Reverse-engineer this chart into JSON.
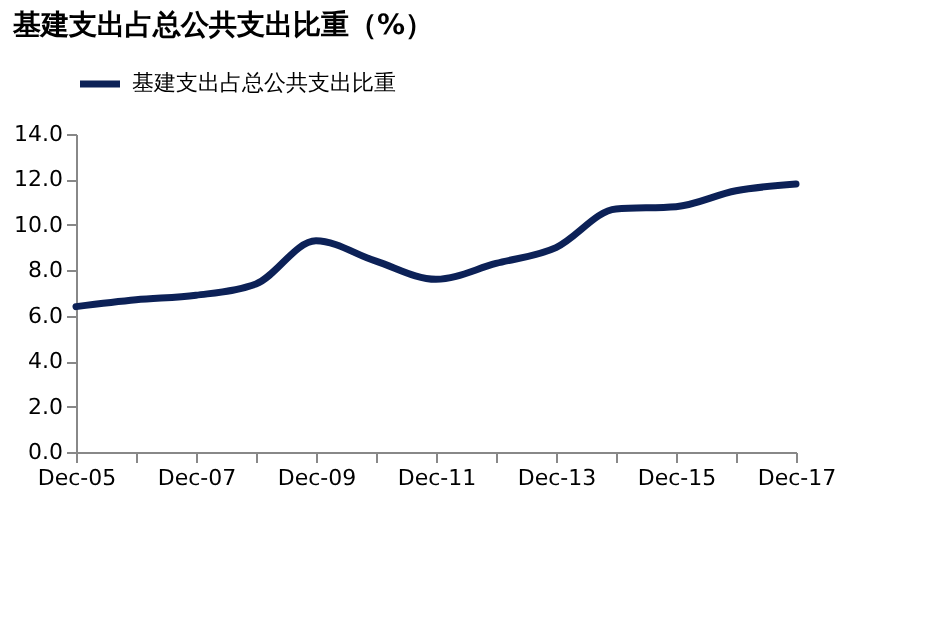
{
  "chart_data": {
    "type": "line",
    "title": "基建支出占总公共支出比重（%）",
    "categories": [
      "Dec-05",
      null,
      "Dec-07",
      null,
      "Dec-09",
      null,
      "Dec-11",
      null,
      "Dec-13",
      null,
      "Dec-15",
      null,
      "Dec-17"
    ],
    "series": [
      {
        "name": "基建支出占总公共支出比重",
        "color": "#0c2157",
        "values": [
          6.4,
          6.7,
          6.9,
          7.4,
          9.3,
          8.4,
          7.6,
          8.3,
          9.0,
          10.7,
          10.8,
          11.5,
          11.8
        ]
      }
    ],
    "ylim": [
      0,
      14
    ],
    "yticks": [
      {
        "value": 0,
        "label": "0.0"
      },
      {
        "value": 2,
        "label": "2.0"
      },
      {
        "value": 4,
        "label": "4.0"
      },
      {
        "value": 6,
        "label": "6.0"
      },
      {
        "value": 8,
        "label": "8.0"
      },
      {
        "value": 10,
        "label": "10.0"
      },
      {
        "value": 12,
        "label": "12.0"
      },
      {
        "value": 14,
        "label": "14.0"
      }
    ],
    "legend": "top",
    "grid": false,
    "marker": "none",
    "line_style": "solid"
  }
}
